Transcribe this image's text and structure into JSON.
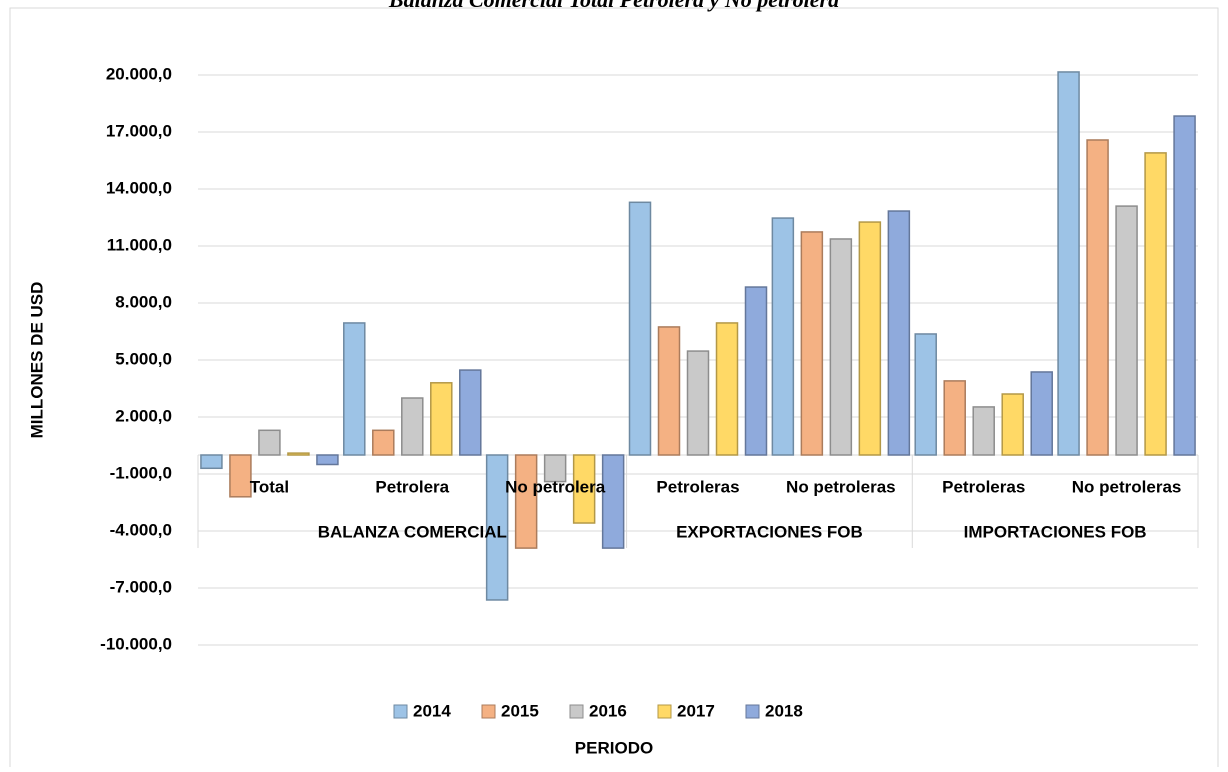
{
  "chart_data": {
    "type": "bar",
    "title": "Balanza Comercial Total Petrolera y No petrolera",
    "ylabel": "MILLONES DE USD",
    "xlabel": "PERIODO",
    "groups": [
      {
        "name": "BALANZA COMERCIAL",
        "categories": [
          "Total",
          "Petrolera",
          "No petrolera"
        ]
      },
      {
        "name": "EXPORTACIONES FOB",
        "categories": [
          "Petroleras",
          "No petroleras"
        ]
      },
      {
        "name": "IMPORTACIONES FOB",
        "categories": [
          "Petroleras",
          "No petroleras"
        ]
      }
    ],
    "series": [
      {
        "name": "2014",
        "color": "#9dc3e6",
        "values": [
          -700,
          6950,
          -7630,
          13300,
          12470,
          6370,
          20160
        ]
      },
      {
        "name": "2015",
        "color": "#f4b183",
        "values": [
          -2200,
          1300,
          -4900,
          6740,
          11740,
          3900,
          16580
        ]
      },
      {
        "name": "2016",
        "color": "#c9c9c9",
        "values": [
          1300,
          3000,
          -1400,
          5470,
          11370,
          2530,
          13100
        ]
      },
      {
        "name": "2017",
        "color": "#ffd966",
        "values": [
          100,
          3800,
          -3580,
          6950,
          12260,
          3210,
          15900
        ]
      },
      {
        "name": "2018",
        "color": "#8faadc",
        "values": [
          -500,
          4470,
          -4900,
          8840,
          12840,
          4370,
          17840
        ]
      }
    ],
    "ylim": [
      -10000,
      20000
    ],
    "yticks": [
      {
        "value": -10000,
        "label": "-10.000,0"
      },
      {
        "value": -7000,
        "label": "-7.000,0"
      },
      {
        "value": -4000,
        "label": "-4.000,0"
      },
      {
        "value": -1000,
        "label": "-1.000,0"
      },
      {
        "value": 2000,
        "label": "2.000,0"
      },
      {
        "value": 5000,
        "label": "5.000,0"
      },
      {
        "value": 8000,
        "label": "8.000,0"
      },
      {
        "value": 11000,
        "label": "11.000,0"
      },
      {
        "value": 14000,
        "label": "14.000,0"
      },
      {
        "value": 17000,
        "label": "17.000,0"
      },
      {
        "value": 20000,
        "label": "20.000,0"
      }
    ],
    "grid": true,
    "legend": "bottom"
  }
}
